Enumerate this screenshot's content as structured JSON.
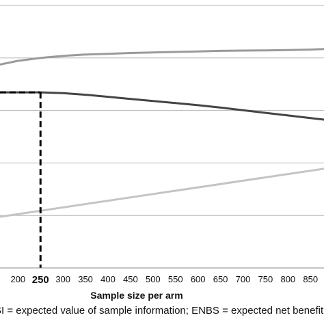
{
  "chart_data": {
    "type": "line",
    "xlabel": "Sample size per arm",
    "x_ticks": [
      200,
      250,
      300,
      350,
      400,
      450,
      500,
      550,
      600,
      650,
      700,
      750,
      800,
      850
    ],
    "x_highlight": 250,
    "xlim": [
      160,
      880
    ],
    "ylim": [
      0,
      1
    ],
    "grid": "horizontal",
    "series": [
      {
        "color": "#9a9a9a",
        "x": [
          160,
          200,
          250,
          300,
          350,
          400,
          450,
          500,
          550,
          600,
          650,
          700,
          750,
          800,
          850,
          880
        ],
        "y": [
          0.775,
          0.789,
          0.8,
          0.808,
          0.813,
          0.816,
          0.819,
          0.821,
          0.823,
          0.825,
          0.827,
          0.828,
          0.829,
          0.83,
          0.832,
          0.834
        ]
      },
      {
        "color": "#444444",
        "x": [
          160,
          200,
          250,
          300,
          350,
          400,
          450,
          500,
          550,
          600,
          650,
          700,
          750,
          800,
          850,
          880
        ],
        "y": [
          0.669,
          0.669,
          0.669,
          0.666,
          0.66,
          0.652,
          0.644,
          0.636,
          0.628,
          0.62,
          0.611,
          0.601,
          0.591,
          0.581,
          0.571,
          0.565
        ]
      },
      {
        "color": "#c4c4c4",
        "x": [
          160,
          880
        ],
        "y": [
          0.195,
          0.378
        ]
      }
    ],
    "optimum": {
      "x": 250,
      "y": 0.669
    },
    "footnote": "EVSI = expected value of sample information; ENBS = expected net benefit of sampling"
  }
}
